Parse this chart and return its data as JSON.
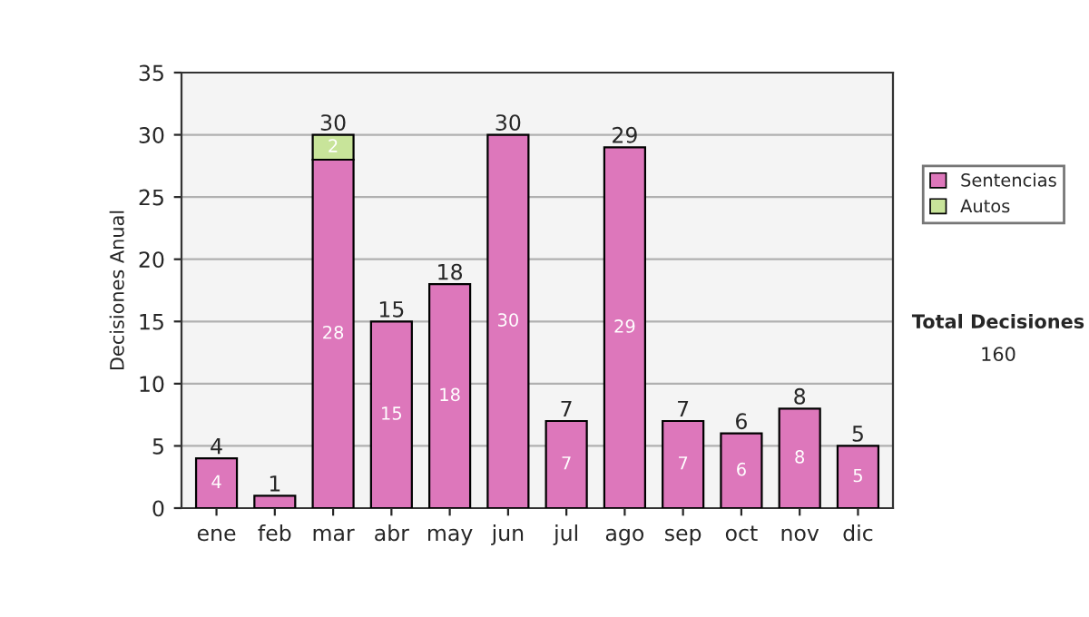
{
  "chart_data": {
    "type": "bar",
    "stacked": true,
    "ylabel": "Decisiones Anual",
    "categories": [
      "ene",
      "feb",
      "mar",
      "abr",
      "may",
      "jun",
      "jul",
      "ago",
      "sep",
      "oct",
      "nov",
      "dic"
    ],
    "series": [
      {
        "name": "Sentencias",
        "color": "#dd77bb",
        "values": [
          4,
          1,
          28,
          15,
          18,
          30,
          7,
          29,
          7,
          6,
          8,
          5
        ],
        "value_labels": [
          "4",
          null,
          "28",
          "15",
          "18",
          "30",
          "7",
          "29",
          "7",
          "6",
          "8",
          "5"
        ]
      },
      {
        "name": "Autos",
        "color": "#c8e49a",
        "values": [
          null,
          null,
          2,
          null,
          null,
          null,
          null,
          null,
          null,
          null,
          null,
          null
        ],
        "value_labels": [
          null,
          null,
          "2",
          null,
          null,
          null,
          null,
          null,
          null,
          null,
          null,
          null
        ]
      }
    ],
    "totals": [
      "4",
      "1",
      "30",
      "15",
      "18",
      "30",
      "7",
      "29",
      "7",
      "6",
      "8",
      "5"
    ],
    "ylim": [
      0,
      35
    ],
    "yticks": [
      0,
      5,
      10,
      15,
      20,
      25,
      30,
      35
    ],
    "grid": "y",
    "legend": "right",
    "annotations": [
      "Total Decisiones",
      "160"
    ]
  }
}
